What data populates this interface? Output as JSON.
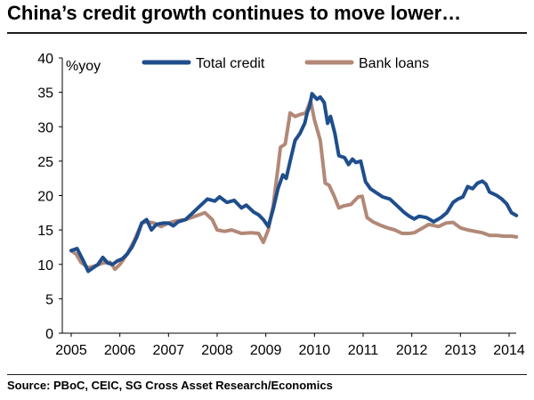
{
  "title": "China’s credit growth continues to move lower…",
  "source": "Source: PBoC, CEIC, SG Cross Asset Research/Economics",
  "chart_data": {
    "type": "line",
    "ylabel": "%yoy",
    "ylim": [
      0,
      40
    ],
    "yticks": [
      0,
      5,
      10,
      15,
      20,
      25,
      30,
      35,
      40
    ],
    "xlim": [
      2005,
      2014.2
    ],
    "xticks": [
      2005,
      2006,
      2007,
      2008,
      2009,
      2010,
      2011,
      2012,
      2013,
      2014
    ],
    "legend_position": "top",
    "grid": false,
    "series": [
      {
        "name": "Total credit",
        "color": "#1f4e8c",
        "points": [
          [
            2005.0,
            12.0
          ],
          [
            2005.12,
            12.3
          ],
          [
            2005.25,
            10.5
          ],
          [
            2005.35,
            9.0
          ],
          [
            2005.45,
            9.5
          ],
          [
            2005.55,
            10.0
          ],
          [
            2005.65,
            11.0
          ],
          [
            2005.75,
            10.2
          ],
          [
            2005.85,
            10.0
          ],
          [
            2005.95,
            10.5
          ],
          [
            2006.05,
            10.8
          ],
          [
            2006.15,
            11.5
          ],
          [
            2006.25,
            12.5
          ],
          [
            2006.35,
            14.0
          ],
          [
            2006.45,
            16.0
          ],
          [
            2006.55,
            16.5
          ],
          [
            2006.65,
            15.0
          ],
          [
            2006.75,
            15.8
          ],
          [
            2006.9,
            16.0
          ],
          [
            2007.0,
            16.0
          ],
          [
            2007.1,
            15.6
          ],
          [
            2007.2,
            16.2
          ],
          [
            2007.35,
            16.5
          ],
          [
            2007.5,
            17.5
          ],
          [
            2007.65,
            18.5
          ],
          [
            2007.8,
            19.5
          ],
          [
            2007.95,
            19.2
          ],
          [
            2008.05,
            19.8
          ],
          [
            2008.2,
            19.0
          ],
          [
            2008.35,
            19.3
          ],
          [
            2008.5,
            18.2
          ],
          [
            2008.6,
            18.6
          ],
          [
            2008.75,
            17.6
          ],
          [
            2008.85,
            17.2
          ],
          [
            2008.95,
            16.5
          ],
          [
            2009.0,
            16.0
          ],
          [
            2009.05,
            15.5
          ],
          [
            2009.15,
            18.0
          ],
          [
            2009.25,
            21.0
          ],
          [
            2009.35,
            23.0
          ],
          [
            2009.42,
            22.5
          ],
          [
            2009.5,
            25.0
          ],
          [
            2009.6,
            28.0
          ],
          [
            2009.7,
            29.0
          ],
          [
            2009.8,
            30.5
          ],
          [
            2009.85,
            32.0
          ],
          [
            2009.9,
            33.0
          ],
          [
            2009.95,
            34.8
          ],
          [
            2010.05,
            34.0
          ],
          [
            2010.12,
            34.3
          ],
          [
            2010.2,
            33.5
          ],
          [
            2010.27,
            30.5
          ],
          [
            2010.33,
            31.5
          ],
          [
            2010.42,
            29.0
          ],
          [
            2010.5,
            25.8
          ],
          [
            2010.62,
            25.5
          ],
          [
            2010.7,
            24.5
          ],
          [
            2010.78,
            25.3
          ],
          [
            2010.85,
            24.8
          ],
          [
            2010.95,
            25.0
          ],
          [
            2011.05,
            22.0
          ],
          [
            2011.15,
            21.0
          ],
          [
            2011.25,
            20.5
          ],
          [
            2011.4,
            19.8
          ],
          [
            2011.55,
            19.5
          ],
          [
            2011.7,
            18.5
          ],
          [
            2011.85,
            17.5
          ],
          [
            2011.95,
            17.0
          ],
          [
            2012.05,
            16.6
          ],
          [
            2012.15,
            17.0
          ],
          [
            2012.3,
            16.8
          ],
          [
            2012.45,
            16.2
          ],
          [
            2012.6,
            16.8
          ],
          [
            2012.72,
            17.5
          ],
          [
            2012.85,
            19.0
          ],
          [
            2012.95,
            19.5
          ],
          [
            2013.05,
            19.8
          ],
          [
            2013.15,
            21.3
          ],
          [
            2013.25,
            21.0
          ],
          [
            2013.35,
            21.8
          ],
          [
            2013.45,
            22.1
          ],
          [
            2013.52,
            21.7
          ],
          [
            2013.6,
            20.5
          ],
          [
            2013.75,
            20.0
          ],
          [
            2013.85,
            19.5
          ],
          [
            2013.95,
            18.8
          ],
          [
            2014.05,
            17.5
          ],
          [
            2014.15,
            17.1
          ]
        ]
      },
      {
        "name": "Bank loans",
        "color": "#b28877",
        "points": [
          [
            2005.0,
            12.0
          ],
          [
            2005.1,
            11.5
          ],
          [
            2005.2,
            10.3
          ],
          [
            2005.35,
            9.5
          ],
          [
            2005.5,
            9.8
          ],
          [
            2005.65,
            10.2
          ],
          [
            2005.8,
            10.3
          ],
          [
            2005.9,
            9.3
          ],
          [
            2006.0,
            10.0
          ],
          [
            2006.15,
            11.5
          ],
          [
            2006.3,
            13.5
          ],
          [
            2006.45,
            16.0
          ],
          [
            2006.55,
            16.2
          ],
          [
            2006.7,
            16.0
          ],
          [
            2006.85,
            15.5
          ],
          [
            2007.0,
            16.0
          ],
          [
            2007.15,
            16.3
          ],
          [
            2007.35,
            16.5
          ],
          [
            2007.55,
            17.0
          ],
          [
            2007.75,
            17.5
          ],
          [
            2007.9,
            16.5
          ],
          [
            2008.0,
            15.0
          ],
          [
            2008.15,
            14.8
          ],
          [
            2008.3,
            15.0
          ],
          [
            2008.5,
            14.5
          ],
          [
            2008.7,
            14.6
          ],
          [
            2008.85,
            14.5
          ],
          [
            2008.95,
            13.2
          ],
          [
            2009.05,
            15.0
          ],
          [
            2009.15,
            18.5
          ],
          [
            2009.25,
            24.0
          ],
          [
            2009.3,
            27.0
          ],
          [
            2009.4,
            27.5
          ],
          [
            2009.5,
            32.0
          ],
          [
            2009.6,
            31.5
          ],
          [
            2009.72,
            31.8
          ],
          [
            2009.82,
            32.0
          ],
          [
            2009.92,
            33.8
          ],
          [
            2010.0,
            31.0
          ],
          [
            2010.12,
            28.0
          ],
          [
            2010.22,
            21.8
          ],
          [
            2010.3,
            21.5
          ],
          [
            2010.4,
            20.0
          ],
          [
            2010.5,
            18.2
          ],
          [
            2010.6,
            18.5
          ],
          [
            2010.75,
            18.7
          ],
          [
            2010.9,
            19.8
          ],
          [
            2010.98,
            19.9
          ],
          [
            2011.08,
            16.8
          ],
          [
            2011.2,
            16.2
          ],
          [
            2011.35,
            15.7
          ],
          [
            2011.5,
            15.3
          ],
          [
            2011.65,
            15.0
          ],
          [
            2011.8,
            14.5
          ],
          [
            2011.95,
            14.5
          ],
          [
            2012.05,
            14.6
          ],
          [
            2012.2,
            15.2
          ],
          [
            2012.35,
            15.8
          ],
          [
            2012.55,
            15.5
          ],
          [
            2012.7,
            16.0
          ],
          [
            2012.85,
            16.1
          ],
          [
            2013.0,
            15.3
          ],
          [
            2013.15,
            15.0
          ],
          [
            2013.3,
            14.8
          ],
          [
            2013.45,
            14.6
          ],
          [
            2013.6,
            14.2
          ],
          [
            2013.75,
            14.2
          ],
          [
            2013.9,
            14.1
          ],
          [
            2014.05,
            14.1
          ],
          [
            2014.15,
            14.0
          ]
        ]
      }
    ]
  }
}
